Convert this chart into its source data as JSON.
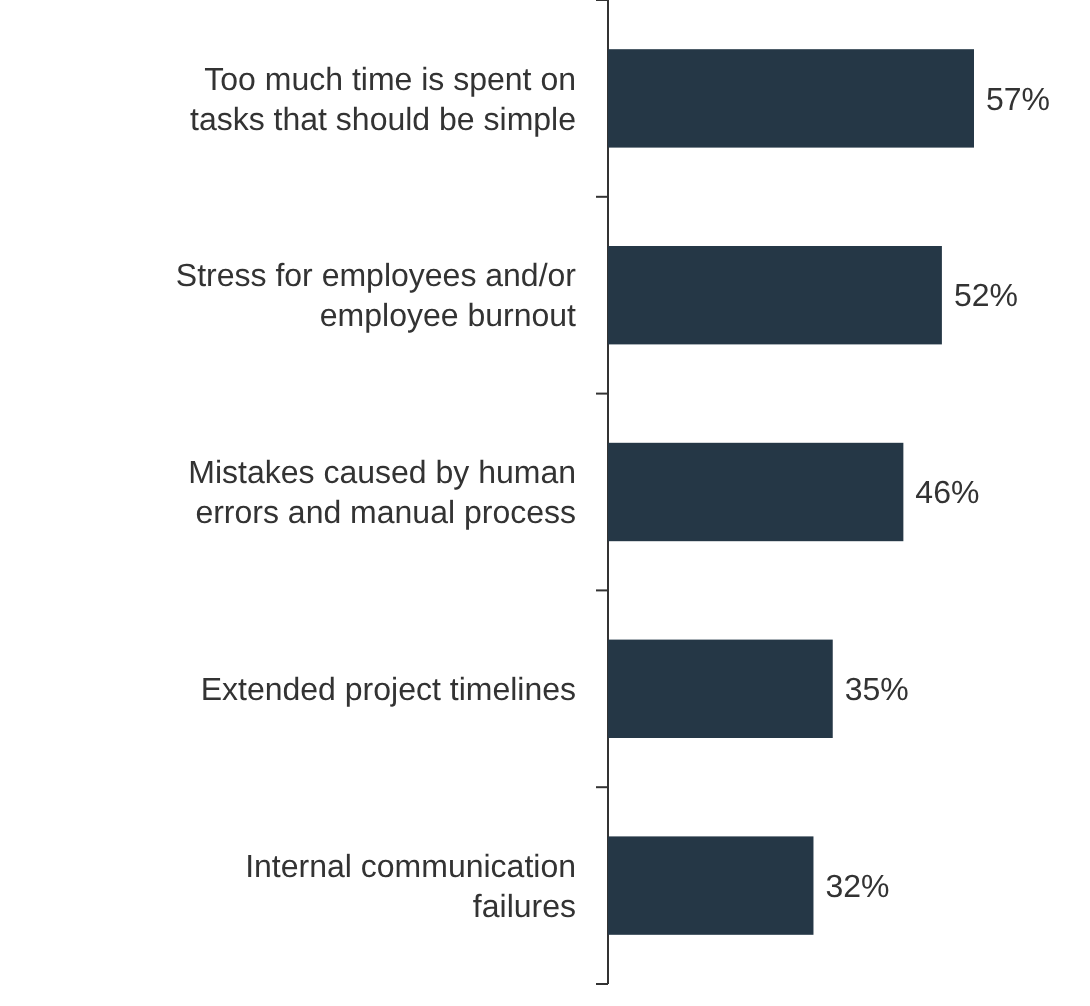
{
  "chart_data": {
    "type": "bar",
    "orientation": "horizontal",
    "categories": [
      "Too much time is spent on tasks that should be simple",
      "Stress for employees and/or employee burnout",
      "Mistakes caused by human errors and manual process",
      "Extended project timelines",
      "Internal communication failures"
    ],
    "values": [
      57,
      52,
      46,
      35,
      32
    ],
    "value_labels": [
      "57%",
      "52%",
      "46%",
      "35%",
      "32%"
    ],
    "color": "#253746"
  }
}
